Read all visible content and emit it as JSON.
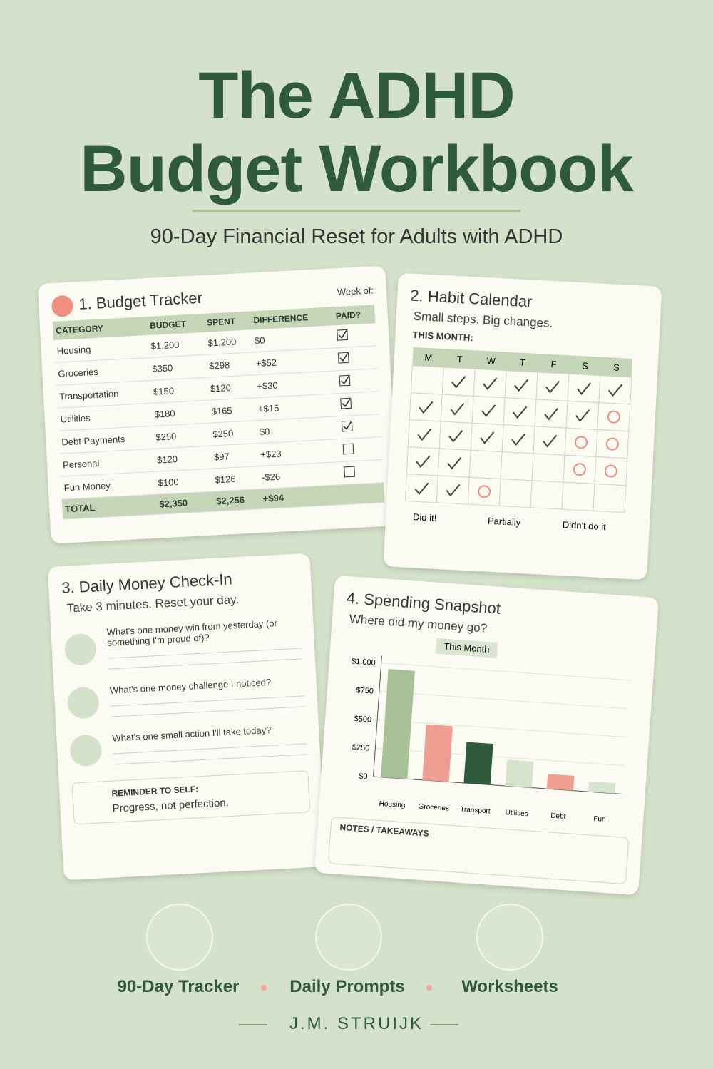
{
  "title_lines": [
    "The ADHD",
    "Budget Workbook"
  ],
  "subtitle": "90-Day Financial Reset for Adults with ADHD",
  "budget_tracker": {
    "title": "1. Budget Tracker",
    "week_label": "Week of:",
    "columns": [
      "CATEGORY",
      "BUDGET",
      "SPENT",
      "DIFFERENCE",
      "PAID?"
    ],
    "rows": [
      [
        "Housing",
        "$1,200",
        "$1,200",
        "$0"
      ],
      [
        "Groceries",
        "$350",
        "$298",
        "+$52"
      ],
      [
        "Transportation",
        "$150",
        "$120",
        "+$30"
      ],
      [
        "Utilities",
        "$180",
        "$165",
        "+$15"
      ],
      [
        "Debt Payments",
        "$250",
        "$250",
        "$0"
      ],
      [
        "Personal",
        "$120",
        "$97",
        "+$23"
      ],
      [
        "Fun Money",
        "$100",
        "$126",
        "-$26"
      ]
    ],
    "paid": [
      true,
      true,
      true,
      true,
      true,
      false,
      false
    ],
    "total": [
      "TOTAL",
      "$2,350",
      "$2,256",
      "+$94"
    ]
  },
  "habit_calendar": {
    "title": "2. Habit Calendar",
    "tagline": "Small steps. Big changes.",
    "month_label": "THIS MONTH:",
    "days": [
      "M",
      "T",
      "W",
      "T",
      "F",
      "S",
      "S"
    ],
    "grid": [
      [
        null,
        "check",
        "check",
        "check",
        "check",
        "check",
        "check"
      ],
      [
        "check",
        "check",
        "check",
        "check",
        "check",
        "check",
        "circle"
      ],
      [
        "check",
        "check",
        "check",
        "check",
        "check",
        "circle",
        "circle"
      ],
      [
        "check",
        "check",
        null,
        null,
        null,
        "circle",
        "circle"
      ],
      [
        "check",
        "check",
        "circle",
        null,
        null,
        null,
        null
      ]
    ],
    "legend": [
      "Did it!",
      "Partially",
      "Didn't do it"
    ]
  },
  "daily_check_in": {
    "title": "3. Daily Money Check-In",
    "tagline": "Take 3 minutes. Reset your day.",
    "prompts": [
      "What's one money win from yesterday (or something I'm proud of)?",
      "What's one money challenge I noticed?",
      "What's one small action I'll take today?"
    ],
    "reminder_label": "REMINDER TO SELF:",
    "reminder": "Progress, not perfection."
  },
  "chart_data": {
    "type": "bar",
    "title": "4. Spending Snapshot",
    "subtitle": "Where did my money go?",
    "categories": [
      "Housing",
      "Groceries",
      "Transport",
      "Utilities",
      "Debt",
      "Fun"
    ],
    "series": [
      {
        "name": "This Month",
        "values": [
          950,
          490,
          360,
          230,
          130,
          90
        ],
        "colors": [
          "#a9c196",
          "#ee9f92",
          "#2f5a3c",
          "#d6e3cd",
          "#ee9f92",
          "#d6e3cd"
        ]
      }
    ],
    "ylim": [
      0,
      1000
    ],
    "yticks": [
      {
        "value": 0,
        "label": "$0"
      },
      {
        "value": 250,
        "label": "$250"
      },
      {
        "value": 500,
        "label": "$500"
      },
      {
        "value": 750,
        "label": "$750"
      },
      {
        "value": 1000,
        "label": "$1,000"
      }
    ],
    "grid": true,
    "notes_label": "NOTES / TAKEAWAYS"
  },
  "features": [
    "90-Day Tracker",
    "Daily Prompts",
    "Worksheets"
  ],
  "author": "J.M. STRUIJK"
}
